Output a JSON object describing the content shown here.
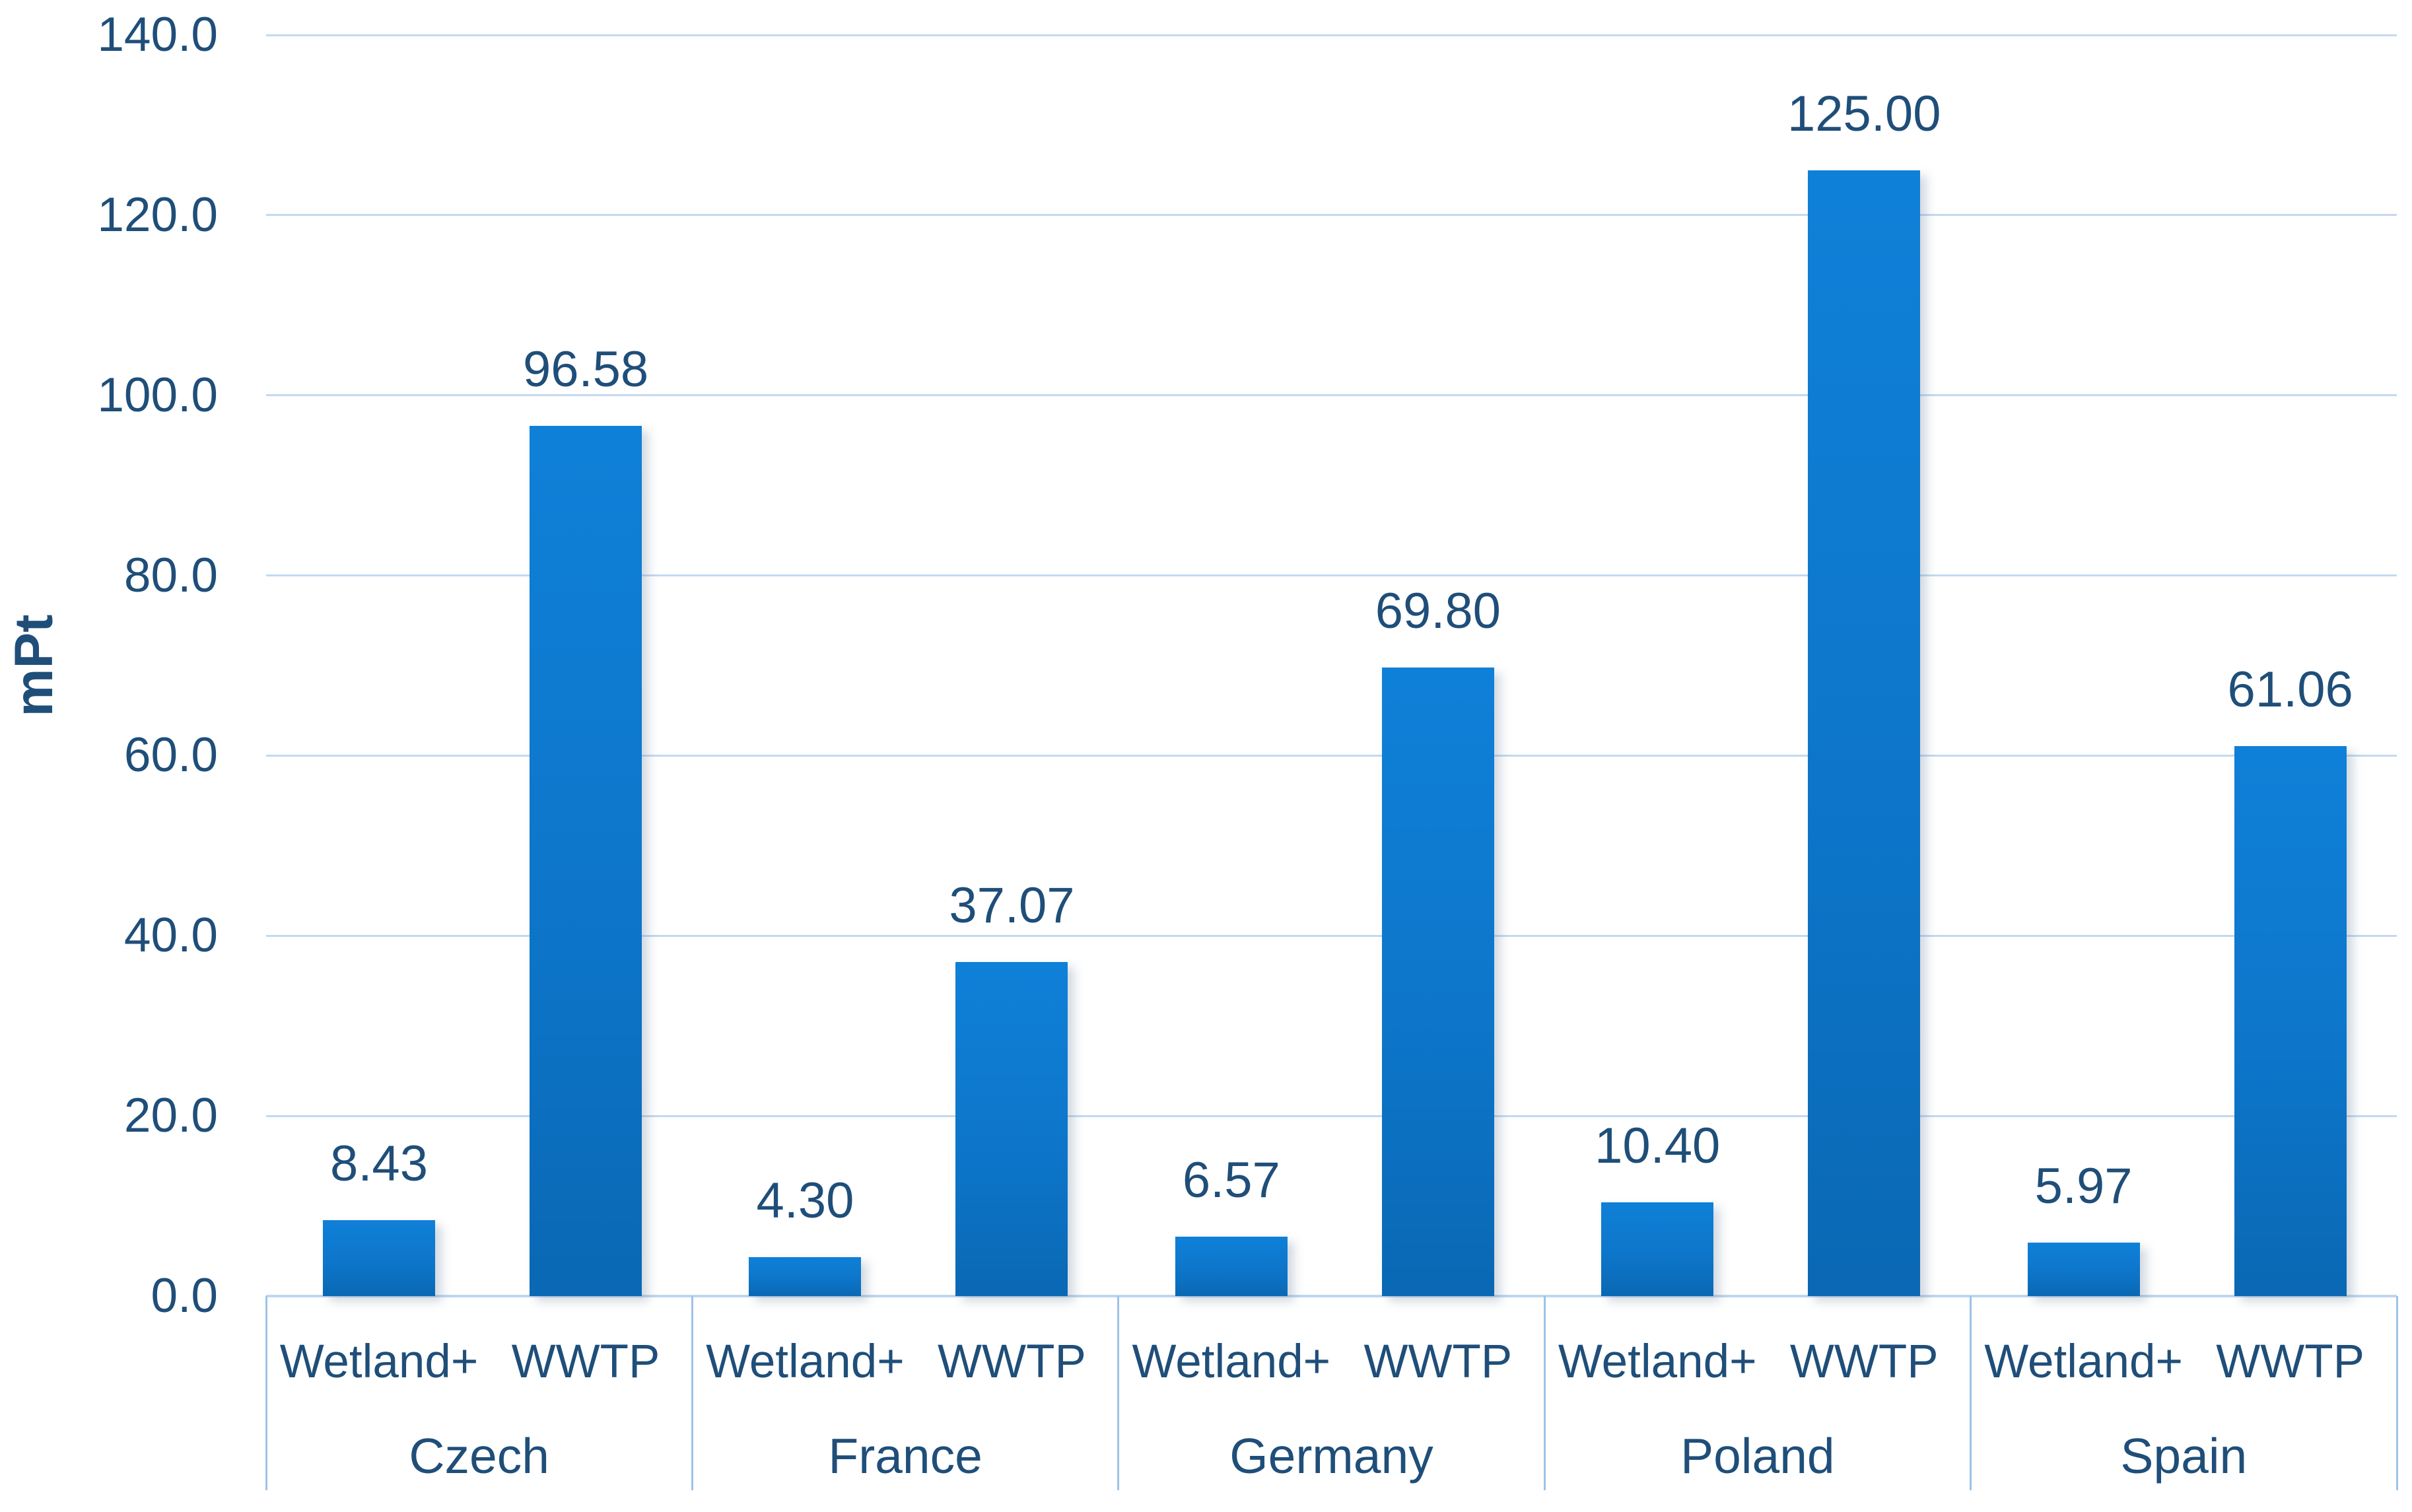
{
  "chart_data": {
    "type": "bar",
    "title": "",
    "xlabel": "",
    "ylabel": "mPt",
    "ylim": [
      0,
      140
    ],
    "y_ticks": [
      0,
      20,
      40,
      60,
      80,
      100,
      120,
      140
    ],
    "y_tick_labels": [
      "0.0",
      "20.0",
      "40.0",
      "60.0",
      "80.0",
      "100.0",
      "120.0",
      "140.0"
    ],
    "grid": true,
    "legend_position": "none",
    "categories": [
      "Czech",
      "France",
      "Germany",
      "Poland",
      "Spain"
    ],
    "series_labels_per_group": [
      "Wetland+",
      "WWTP"
    ],
    "series": [
      {
        "name": "Wetland+",
        "values": [
          8.43,
          4.3,
          6.57,
          10.4,
          5.97
        ],
        "labels": [
          "8.43",
          "4.30",
          "6.57",
          "10.40",
          "5.97"
        ]
      },
      {
        "name": "WWTP",
        "values": [
          96.58,
          37.07,
          69.8,
          125.0,
          61.06
        ],
        "labels": [
          "96.58",
          "37.07",
          "69.80",
          "125.00",
          "61.06"
        ]
      }
    ]
  },
  "colors": {
    "background": "#ffffff",
    "text": "#1f4e79",
    "bar_top": "#0f80d8",
    "bar_mid": "#0d76ca",
    "bar_bottom": "#0a68b4",
    "gridline": "#c3d9f0",
    "axis_line": "#bdd7ee",
    "divider": "#9dc3e6"
  }
}
